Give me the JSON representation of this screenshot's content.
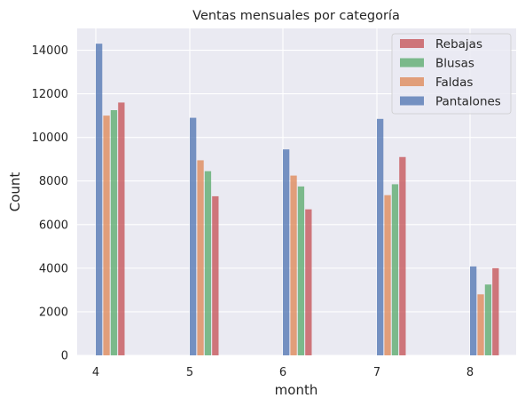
{
  "chart_data": {
    "type": "bar",
    "title": "Ventas mensuales por categoría",
    "xlabel": "month",
    "ylabel": "Count",
    "categories": [
      "4",
      "5",
      "6",
      "7",
      "8"
    ],
    "ylim": [
      0,
      15000
    ],
    "yticks": [
      0,
      2000,
      4000,
      6000,
      8000,
      10000,
      12000,
      14000
    ],
    "grid": true,
    "legend_position": "top-right",
    "series": [
      {
        "name": "Pantalones",
        "color": "#4c72b0",
        "values": [
          14300,
          10900,
          9450,
          10850,
          4080
        ]
      },
      {
        "name": "Faldas",
        "color": "#dd8452",
        "values": [
          11000,
          8950,
          8250,
          7350,
          2800
        ]
      },
      {
        "name": "Blusas",
        "color": "#55a868",
        "values": [
          11250,
          8450,
          7750,
          7850,
          3250
        ]
      },
      {
        "name": "Rebajas",
        "color": "#c44e52",
        "values": [
          11600,
          7300,
          6700,
          9100,
          4000
        ]
      }
    ],
    "legend_order": [
      "Rebajas",
      "Blusas",
      "Faldas",
      "Pantalones"
    ]
  },
  "style": {
    "plot_background": "#eaeaf2",
    "grid_color": "#ffffff",
    "bar_opacity": 0.75
  }
}
